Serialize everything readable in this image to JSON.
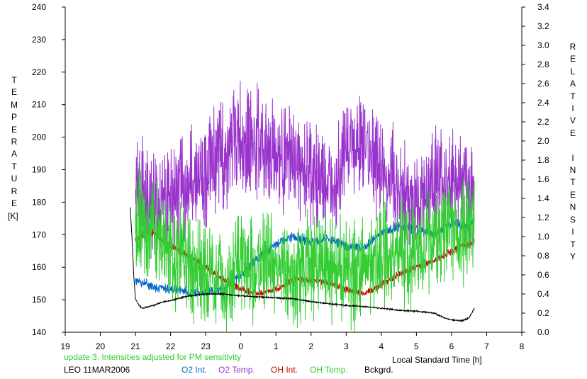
{
  "chart_data": {
    "type": "line",
    "title": "",
    "xlabel": "Local Standard Time [h]",
    "ylabel_left": "TEMPERATURE",
    "ylabel_left_unit": "[K]",
    "ylabel_right": "RELATIVE INTENSITY",
    "x_ticks": [
      "19",
      "20",
      "21",
      "22",
      "23",
      "0",
      "1",
      "2",
      "3",
      "4",
      "5",
      "6",
      "7",
      "8"
    ],
    "xlim": [
      19,
      32
    ],
    "ylim_left": [
      140,
      240
    ],
    "ylim_right": [
      0.0,
      3.4
    ],
    "y_ticks_left": [
      "140",
      "150",
      "160",
      "170",
      "180",
      "190",
      "200",
      "210",
      "220",
      "230",
      "240"
    ],
    "y_ticks_right": [
      "0.0",
      "0.2",
      "0.4",
      "0.6",
      "0.8",
      "1.0",
      "1.2",
      "1.4",
      "1.6",
      "1.8",
      "2.0",
      "2.2",
      "2.4",
      "2.6",
      "2.8",
      "3.0",
      "3.2",
      "3.4"
    ],
    "grid": false,
    "legend_placement": "bottom",
    "series": [
      {
        "name": "O2 Int.",
        "color": "#0066cc",
        "axis": "right",
        "x": [
          21.0,
          21.5,
          22.0,
          22.5,
          23.0,
          23.5,
          24.0,
          24.5,
          25.0,
          25.5,
          26.0,
          26.5,
          27.0,
          27.5,
          28.0,
          28.5,
          29.0,
          29.5,
          30.0,
          30.5,
          30.65
        ],
        "y": [
          0.55,
          0.48,
          0.45,
          0.43,
          0.42,
          0.45,
          0.6,
          0.78,
          0.92,
          1.0,
          0.95,
          0.98,
          0.9,
          0.88,
          1.05,
          1.1,
          1.08,
          1.02,
          1.15,
          1.1,
          1.2
        ],
        "noise": 0.04
      },
      {
        "name": "O2 Temp.",
        "color": "#9933cc",
        "axis": "left",
        "x": [
          21.0,
          21.5,
          22.0,
          22.5,
          23.0,
          23.5,
          24.0,
          24.5,
          25.0,
          25.5,
          26.0,
          26.5,
          27.0,
          27.5,
          28.0,
          28.5,
          29.0,
          29.5,
          30.0,
          30.5,
          30.65
        ],
        "y": [
          185,
          180,
          182,
          185,
          190,
          195,
          200,
          198,
          195,
          192,
          188,
          186,
          196,
          198,
          190,
          185,
          180,
          186,
          186,
          182,
          185
        ],
        "noise": 12
      },
      {
        "name": "OH Int.",
        "color": "#cc0000",
        "axis": "right",
        "x": [
          21.0,
          21.5,
          22.0,
          22.5,
          23.0,
          23.5,
          24.0,
          24.5,
          25.0,
          25.5,
          26.0,
          26.5,
          27.0,
          27.5,
          28.0,
          28.5,
          29.0,
          29.5,
          30.0,
          30.5,
          30.65
        ],
        "y": [
          0.98,
          1.05,
          0.9,
          0.8,
          0.68,
          0.55,
          0.45,
          0.4,
          0.45,
          0.55,
          0.55,
          0.52,
          0.45,
          0.4,
          0.5,
          0.6,
          0.68,
          0.75,
          0.85,
          0.92,
          0.95
        ],
        "noise": 0.03
      },
      {
        "name": "OH Temp.",
        "color": "#33cc33",
        "axis": "left",
        "x": [
          21.0,
          21.5,
          22.0,
          22.5,
          23.0,
          23.5,
          24.0,
          24.5,
          25.0,
          25.5,
          26.0,
          26.5,
          27.0,
          27.5,
          28.0,
          28.5,
          29.0,
          29.5,
          30.0,
          30.5,
          30.65
        ],
        "y": [
          175,
          170,
          165,
          162,
          158,
          155,
          160,
          158,
          160,
          158,
          162,
          160,
          158,
          160,
          165,
          166,
          165,
          170,
          172,
          173,
          175
        ],
        "noise": 12
      },
      {
        "name": "Bckgrd.",
        "color": "#000000",
        "axis": "right",
        "x": [
          20.85,
          20.9,
          20.95,
          21.0,
          21.1,
          21.2,
          21.5,
          21.8,
          22.0,
          22.5,
          23.0,
          23.5,
          24.0,
          24.5,
          25.0,
          25.5,
          26.0,
          26.5,
          27.0,
          27.5,
          28.0,
          28.5,
          29.0,
          29.5,
          29.8,
          30.0,
          30.3,
          30.5,
          30.65
        ],
        "y": [
          1.3,
          1.0,
          0.6,
          0.35,
          0.28,
          0.25,
          0.28,
          0.32,
          0.33,
          0.38,
          0.4,
          0.4,
          0.38,
          0.37,
          0.36,
          0.35,
          0.32,
          0.3,
          0.28,
          0.27,
          0.25,
          0.23,
          0.22,
          0.2,
          0.15,
          0.13,
          0.12,
          0.15,
          0.25
        ],
        "noise": 0.005
      }
    ],
    "annotations": [
      "update 3. Intensities adjusted for PM sensitivity",
      "LEO 11MAR2006"
    ]
  },
  "annotation_color": "#33cc33"
}
